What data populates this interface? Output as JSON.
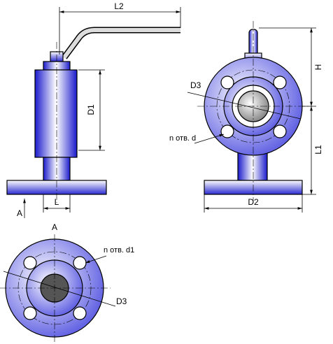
{
  "front_view": {
    "length_l2": "L2",
    "diameter_d1": "D1",
    "length_l": "L",
    "view_mark": "A"
  },
  "side_view": {
    "height_h": "H",
    "diameter_d3": "D3",
    "holes_d": "n отв. d",
    "length_l1": "L1",
    "diameter_d2": "D2"
  },
  "view_a": {
    "title": "A",
    "holes_d1": "n отв. d1",
    "diameter_d3": "D3"
  }
}
